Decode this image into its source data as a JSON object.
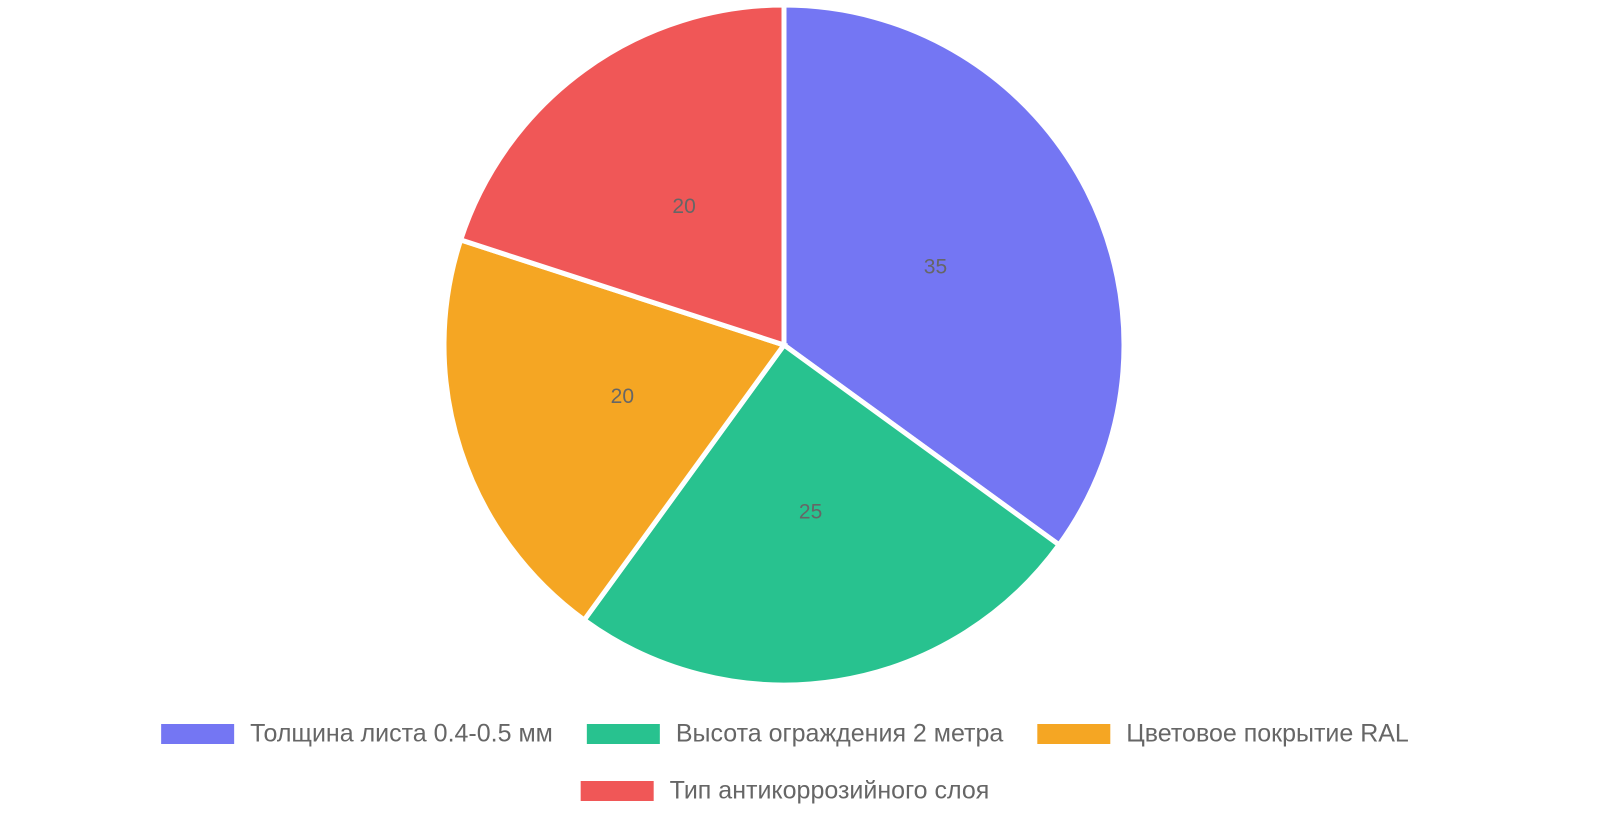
{
  "chart_data": {
    "type": "pie",
    "categories": [
      "Толщина листа 0.4-0.5 мм",
      "Высота ограждения 2 метра",
      "Цветовое покрытие RAL",
      "Тип антикоррозийного слоя"
    ],
    "values": [
      35,
      25,
      20,
      20
    ],
    "colors": [
      "#7476f3",
      "#28c28f",
      "#f5a623",
      "#f05757"
    ],
    "legend": "bottom"
  }
}
